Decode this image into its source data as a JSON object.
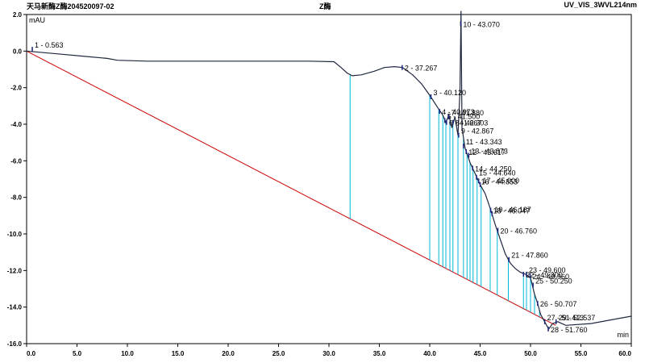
{
  "header": {
    "left": "天马新酶Z酶204520097-02",
    "center": "Z酶",
    "right": "UV_VIS_3WVL214nm"
  },
  "chart_data": {
    "type": "line",
    "xlabel": "min",
    "ylabel": "mAU",
    "xlim": [
      0,
      60
    ],
    "ylim": [
      -16,
      2
    ],
    "x_ticks": [
      "0.0",
      "5.0",
      "10.0",
      "15.0",
      "20.0",
      "25.0",
      "30.0",
      "35.0",
      "40.0",
      "45.0",
      "50.0",
      "55.0",
      "60.0"
    ],
    "y_ticks": [
      "2.0",
      "0.0",
      "-2.0",
      "-4.0",
      "-6.0",
      "-8.0",
      "-10.0",
      "-12.0",
      "-14.0",
      "-16.0"
    ],
    "colors": {
      "signal": "#202840",
      "baseline": "#cc0000",
      "markers": "#00b8d8",
      "peak": "#1a237e"
    },
    "signal": [
      [
        0,
        0
      ],
      [
        3,
        -0.15
      ],
      [
        6,
        -0.3
      ],
      [
        8,
        -0.4
      ],
      [
        9,
        -0.5
      ],
      [
        12,
        -0.55
      ],
      [
        20,
        -0.55
      ],
      [
        28,
        -0.55
      ],
      [
        30.5,
        -0.58
      ],
      [
        31.2,
        -0.9
      ],
      [
        31.8,
        -1.2
      ],
      [
        32.3,
        -1.35
      ],
      [
        33.2,
        -1.3
      ],
      [
        34.5,
        -1.1
      ],
      [
        35.5,
        -0.9
      ],
      [
        36.5,
        -0.85
      ],
      [
        37.3,
        -0.9
      ],
      [
        38.3,
        -1.3
      ],
      [
        39.2,
        -1.8
      ],
      [
        40.1,
        -2.5
      ],
      [
        40.8,
        -3.1
      ],
      [
        41.3,
        -3.5
      ],
      [
        41.6,
        -3.9
      ],
      [
        41.9,
        -3.5
      ],
      [
        42.2,
        -4.2
      ],
      [
        42.5,
        -3.6
      ],
      [
        42.8,
        -4.6
      ],
      [
        43.0,
        -2.2
      ],
      [
        43.1,
        2.2
      ],
      [
        43.2,
        -4.2
      ],
      [
        43.5,
        -5.3
      ],
      [
        44.0,
        -6.1
      ],
      [
        44.5,
        -6.7
      ],
      [
        45.0,
        -7.3
      ],
      [
        45.5,
        -7.8
      ],
      [
        46.0,
        -8.6
      ],
      [
        46.5,
        -9.5
      ],
      [
        47.0,
        -10.3
      ],
      [
        47.5,
        -11.1
      ],
      [
        48.0,
        -11.6
      ],
      [
        48.5,
        -11.9
      ],
      [
        49.0,
        -12.1
      ],
      [
        49.5,
        -12.2
      ],
      [
        50.0,
        -12.4
      ],
      [
        50.4,
        -13.3
      ],
      [
        50.7,
        -13.8
      ],
      [
        51.0,
        -14.4
      ],
      [
        51.4,
        -14.8
      ],
      [
        51.8,
        -15.2
      ],
      [
        52.2,
        -14.9
      ],
      [
        52.7,
        -14.8
      ],
      [
        53.5,
        -15.0
      ],
      [
        56,
        -14.9
      ],
      [
        58,
        -14.7
      ],
      [
        60,
        -14.5
      ]
    ],
    "baseline": [
      [
        0,
        0
      ],
      [
        52.5,
        -15.0
      ]
    ],
    "peaks": [
      {
        "label": "1 - 0.563",
        "x": 0.563,
        "y": 0.1
      },
      {
        "label": "2 - 37.267",
        "x": 37.267,
        "y": -0.9
      },
      {
        "label": "3 - 40.120",
        "x": 40.12,
        "y": -2.5
      },
      {
        "label": "4 - 40.973",
        "x": 40.973,
        "y": -3.3
      },
      {
        "label": "5 - 41.500",
        "x": 41.5,
        "y": -3.8
      },
      {
        "label": "6 - 41.667",
        "x": 41.667,
        "y": -3.9
      },
      {
        "label": "7 - 41.880",
        "x": 41.88,
        "y": -3.6
      },
      {
        "label": "8 - 42.303",
        "x": 42.303,
        "y": -3.9
      },
      {
        "label": "9 - 42.867",
        "x": 42.867,
        "y": -4.6
      },
      {
        "label": "10 - 43.070",
        "x": 43.07,
        "y": 1.5
      },
      {
        "label": "11 - 43.343",
        "x": 43.343,
        "y": -5.2
      },
      {
        "label": "12 - 43.617",
        "x": 43.617,
        "y": -5.5
      },
      {
        "label": "13 - 43.873",
        "x": 43.873,
        "y": -5.7
      },
      {
        "label": "14 - 44.250",
        "x": 44.25,
        "y": -6.4
      },
      {
        "label": "15 - 44.640",
        "x": 44.64,
        "y": -6.9
      },
      {
        "label": "16 - 44.853",
        "x": 44.853,
        "y": -7.1
      },
      {
        "label": "17 - 45.000",
        "x": 45.0,
        "y": -7.3
      },
      {
        "label": "18 - 46.047",
        "x": 46.047,
        "y": -8.7
      },
      {
        "label": "19 - 46.187",
        "x": 46.187,
        "y": -8.9
      },
      {
        "label": "20 - 46.760",
        "x": 46.76,
        "y": -9.8
      },
      {
        "label": "21 - 47.860",
        "x": 47.86,
        "y": -11.4
      },
      {
        "label": "22 - 49.300",
        "x": 49.3,
        "y": -12.2
      },
      {
        "label": "23 - 49.600",
        "x": 49.6,
        "y": -12.2
      },
      {
        "label": "24 - 49.960",
        "x": 49.96,
        "y": -12.3
      },
      {
        "label": "25 - 50.250",
        "x": 50.25,
        "y": -12.8
      },
      {
        "label": "26 - 50.707",
        "x": 50.707,
        "y": -13.8
      },
      {
        "label": "27 - 51.413",
        "x": 51.413,
        "y": -14.8
      },
      {
        "label": "28 - 51.760",
        "x": 51.76,
        "y": -15.2
      },
      {
        "label": "29 - 52.537",
        "x": 52.537,
        "y": -14.8
      }
    ]
  }
}
